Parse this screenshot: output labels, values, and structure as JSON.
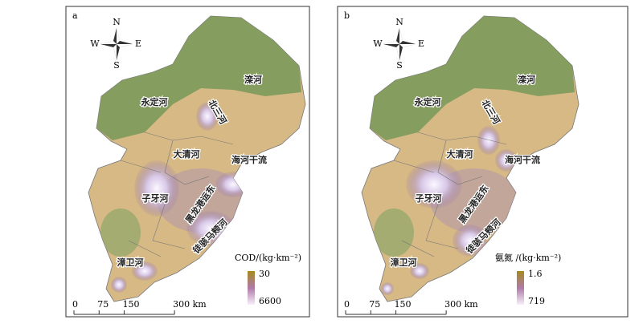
{
  "panels": [
    {
      "label": "a",
      "compass": {
        "n": "N",
        "s": "S",
        "e": "E",
        "w": "W"
      },
      "regions": [
        "永定河",
        "滦河",
        "北三河",
        "大清河",
        "海河干流",
        "子牙河",
        "黑龙港运东",
        "徒骇马颊河",
        "漳卫河"
      ],
      "legend": {
        "title": "COD/(kg·km⁻²)",
        "top": 30,
        "bottom": 6600
      },
      "scale": [
        "0",
        "75",
        "150",
        "300 km"
      ]
    },
    {
      "label": "b",
      "compass": {
        "n": "N",
        "s": "S",
        "e": "E",
        "w": "W"
      },
      "regions": [
        "永定河",
        "滦河",
        "北三河",
        "大清河",
        "海河干流",
        "子牙河",
        "黑龙港运东",
        "徒骇马颊河",
        "漳卫河"
      ],
      "legend": {
        "title": "氨氮 /(kg·km⁻²)",
        "top": 1.6,
        "bottom": 719
      },
      "scale": [
        "0",
        "75",
        "150",
        "300 km"
      ]
    }
  ]
}
